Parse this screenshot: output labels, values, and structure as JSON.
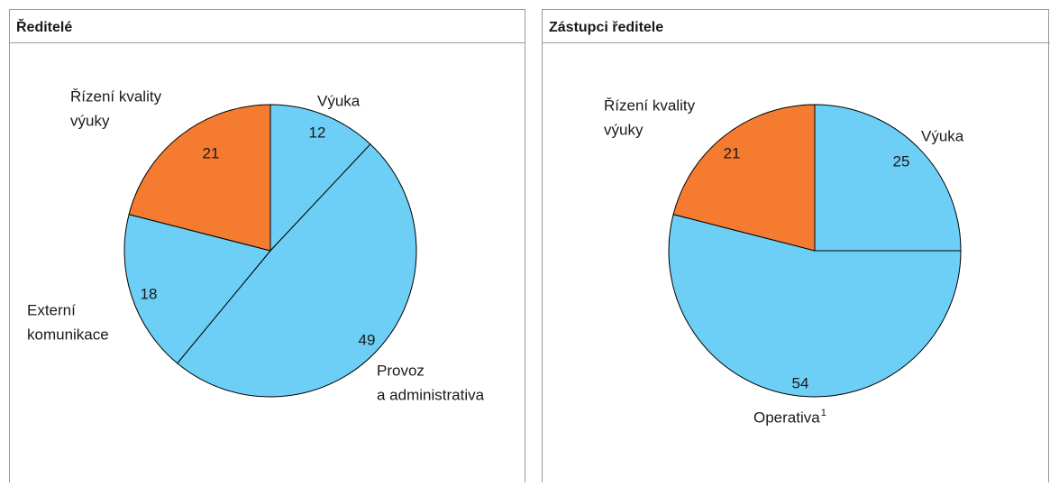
{
  "chart_data": [
    {
      "type": "pie",
      "title": "Ředitelé",
      "categories": [
        [
          "Výuka"
        ],
        [
          "Provoz",
          "a administrativa"
        ],
        [
          "Externí",
          "komunikace"
        ],
        [
          "Řízení kvality",
          "výuky"
        ]
      ],
      "values": [
        12,
        49,
        18,
        21
      ],
      "colors": [
        "#6dcff6",
        "#6dcff6",
        "#6dcff6",
        "#f47b30"
      ]
    },
    {
      "type": "pie",
      "title": "Zástupci ředitele",
      "categories": [
        [
          "Výuka"
        ],
        [
          "Operativa"
        ],
        [
          "Řízení kvality",
          "výuky"
        ]
      ],
      "values": [
        25,
        54,
        21
      ],
      "notes": {
        "1": "1"
      },
      "colors": [
        "#6dcff6",
        "#6dcff6",
        "#f47b30"
      ]
    }
  ]
}
